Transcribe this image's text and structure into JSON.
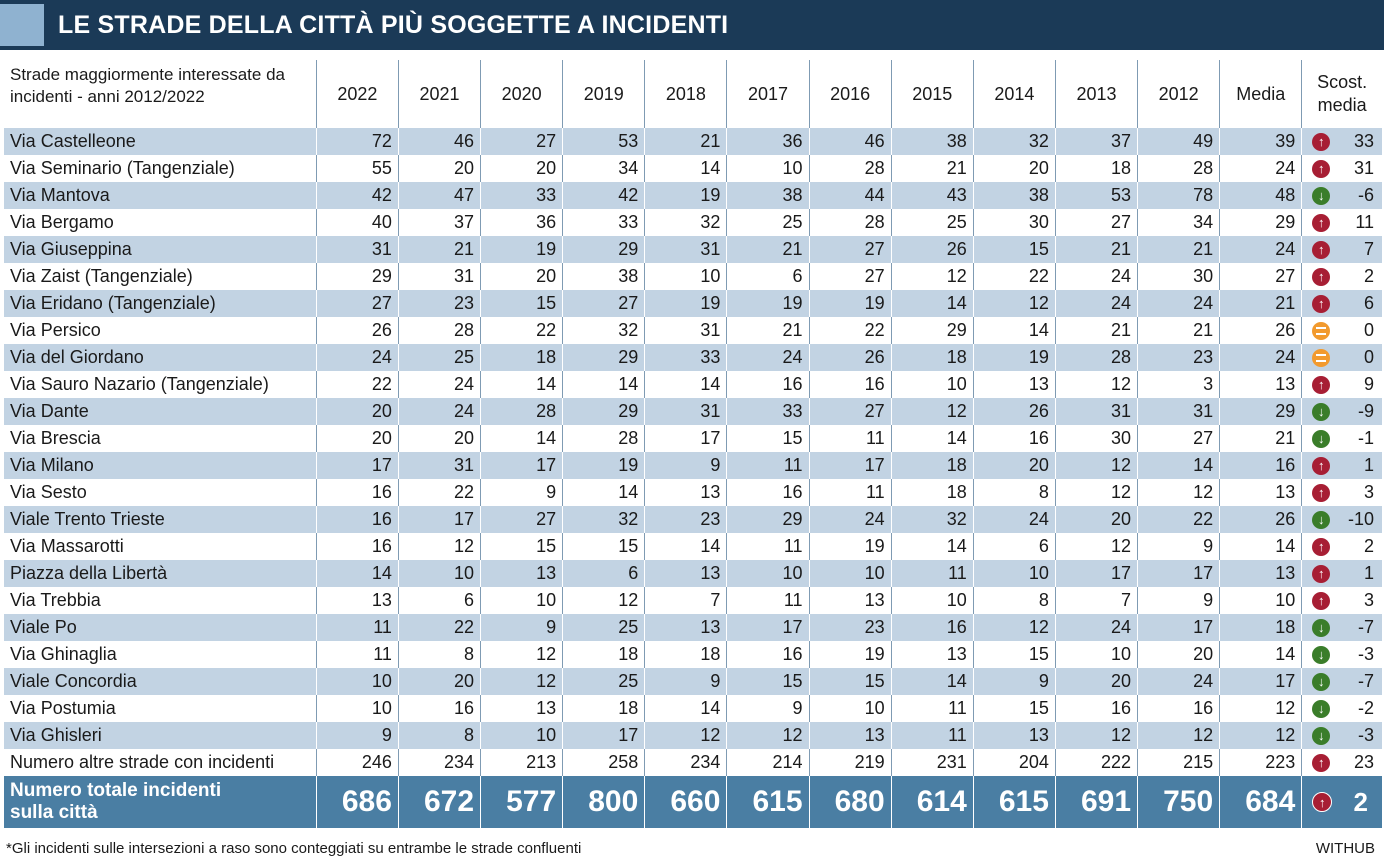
{
  "title": "LE STRADE DELLA CITTÀ PIÙ SOGGETTE A INCIDENTI",
  "header": {
    "street": "Strade maggiormente interessate da incidenti - anni 2012/2022",
    "years": [
      "2022",
      "2021",
      "2020",
      "2019",
      "2018",
      "2017",
      "2016",
      "2015",
      "2014",
      "2013",
      "2012"
    ],
    "media": "Media",
    "scost": "Scost. media"
  },
  "rows": [
    {
      "street": "Via Castelleone",
      "values": [
        "72",
        "46",
        "27",
        "53",
        "21",
        "36",
        "46",
        "38",
        "32",
        "37",
        "49"
      ],
      "media": "39",
      "trend": "up",
      "delta": "33"
    },
    {
      "street": "Via Seminario (Tangenziale)",
      "values": [
        "55",
        "20",
        "20",
        "34",
        "14",
        "10",
        "28",
        "21",
        "20",
        "18",
        "28"
      ],
      "media": "24",
      "trend": "up",
      "delta": "31"
    },
    {
      "street": "Via Mantova",
      "values": [
        "42",
        "47",
        "33",
        "42",
        "19",
        "38",
        "44",
        "43",
        "38",
        "53",
        "78"
      ],
      "media": "48",
      "trend": "down",
      "delta": "-6"
    },
    {
      "street": "Via Bergamo",
      "values": [
        "40",
        "37",
        "36",
        "33",
        "32",
        "25",
        "28",
        "25",
        "30",
        "27",
        "34"
      ],
      "media": "29",
      "trend": "up",
      "delta": "11"
    },
    {
      "street": "Via Giuseppina",
      "values": [
        "31",
        "21",
        "19",
        "29",
        "31",
        "21",
        "27",
        "26",
        "15",
        "21",
        "21"
      ],
      "media": "24",
      "trend": "up",
      "delta": "7"
    },
    {
      "street": "Via Zaist (Tangenziale)",
      "values": [
        "29",
        "31",
        "20",
        "38",
        "10",
        "6",
        "27",
        "12",
        "22",
        "24",
        "30"
      ],
      "media": "27",
      "trend": "up",
      "delta": "2"
    },
    {
      "street": "Via Eridano (Tangenziale)",
      "values": [
        "27",
        "23",
        "15",
        "27",
        "19",
        "19",
        "19",
        "14",
        "12",
        "24",
        "24"
      ],
      "media": "21",
      "trend": "up",
      "delta": "6"
    },
    {
      "street": "Via Persico",
      "values": [
        "26",
        "28",
        "22",
        "32",
        "31",
        "21",
        "22",
        "29",
        "14",
        "21",
        "21"
      ],
      "media": "26",
      "trend": "eq",
      "delta": "0"
    },
    {
      "street": "Via del Giordano",
      "values": [
        "24",
        "25",
        "18",
        "29",
        "33",
        "24",
        "26",
        "18",
        "19",
        "28",
        "23"
      ],
      "media": "24",
      "trend": "eq",
      "delta": "0"
    },
    {
      "street": "Via Sauro Nazario (Tangenziale)",
      "values": [
        "22",
        "24",
        "14",
        "14",
        "14",
        "16",
        "16",
        "10",
        "13",
        "12",
        "3"
      ],
      "media": "13",
      "trend": "up",
      "delta": "9"
    },
    {
      "street": "Via Dante",
      "values": [
        "20",
        "24",
        "28",
        "29",
        "31",
        "33",
        "27",
        "12",
        "26",
        "31",
        "31"
      ],
      "media": "29",
      "trend": "down",
      "delta": "-9"
    },
    {
      "street": "Via Brescia",
      "values": [
        "20",
        "20",
        "14",
        "28",
        "17",
        "15",
        "11",
        "14",
        "16",
        "30",
        "27"
      ],
      "media": "21",
      "trend": "down",
      "delta": "-1"
    },
    {
      "street": "Via Milano",
      "values": [
        "17",
        "31",
        "17",
        "19",
        "9",
        "11",
        "17",
        "18",
        "20",
        "12",
        "14"
      ],
      "media": "16",
      "trend": "up",
      "delta": "1"
    },
    {
      "street": "Via Sesto",
      "values": [
        "16",
        "22",
        "9",
        "14",
        "13",
        "16",
        "11",
        "18",
        "8",
        "12",
        "12"
      ],
      "media": "13",
      "trend": "up",
      "delta": "3"
    },
    {
      "street": "Viale Trento Trieste",
      "values": [
        "16",
        "17",
        "27",
        "32",
        "23",
        "29",
        "24",
        "32",
        "24",
        "20",
        "22"
      ],
      "media": "26",
      "trend": "down",
      "delta": "-10"
    },
    {
      "street": "Via Massarotti",
      "values": [
        "16",
        "12",
        "15",
        "15",
        "14",
        "11",
        "19",
        "14",
        "6",
        "12",
        "9"
      ],
      "media": "14",
      "trend": "up",
      "delta": "2"
    },
    {
      "street": "Piazza della Libertà",
      "values": [
        "14",
        "10",
        "13",
        "6",
        "13",
        "10",
        "10",
        "11",
        "10",
        "17",
        "17"
      ],
      "media": "13",
      "trend": "up",
      "delta": "1"
    },
    {
      "street": "Via Trebbia",
      "values": [
        "13",
        "6",
        "10",
        "12",
        "7",
        "11",
        "13",
        "10",
        "8",
        "7",
        "9"
      ],
      "media": "10",
      "trend": "up",
      "delta": "3"
    },
    {
      "street": "Viale Po",
      "values": [
        "11",
        "22",
        "9",
        "25",
        "13",
        "17",
        "23",
        "16",
        "12",
        "24",
        "17"
      ],
      "media": "18",
      "trend": "down",
      "delta": "-7"
    },
    {
      "street": "Via Ghinaglia",
      "values": [
        "11",
        "8",
        "12",
        "18",
        "18",
        "16",
        "19",
        "13",
        "15",
        "10",
        "20"
      ],
      "media": "14",
      "trend": "down",
      "delta": "-3"
    },
    {
      "street": "Viale Concordia",
      "values": [
        "10",
        "20",
        "12",
        "25",
        "9",
        "15",
        "15",
        "14",
        "9",
        "20",
        "24"
      ],
      "media": "17",
      "trend": "down",
      "delta": "-7"
    },
    {
      "street": "Via Postumia",
      "values": [
        "10",
        "16",
        "13",
        "18",
        "14",
        "9",
        "10",
        "11",
        "15",
        "16",
        "16"
      ],
      "media": "12",
      "trend": "down",
      "delta": "-2"
    },
    {
      "street": "Via Ghisleri",
      "values": [
        "9",
        "8",
        "10",
        "17",
        "12",
        "12",
        "13",
        "11",
        "13",
        "12",
        "12"
      ],
      "media": "12",
      "trend": "down",
      "delta": "-3"
    },
    {
      "street": "Numero altre strade con incidenti",
      "values": [
        "246",
        "234",
        "213",
        "258",
        "234",
        "214",
        "219",
        "231",
        "204",
        "222",
        "215"
      ],
      "media": "223",
      "trend": "up",
      "delta": "23"
    }
  ],
  "total": {
    "label_line1": "Numero totale incidenti",
    "label_line2": "sulla città",
    "values": [
      "686",
      "672",
      "577",
      "800",
      "660",
      "615",
      "680",
      "614",
      "615",
      "691",
      "750"
    ],
    "media": "684",
    "trend": "up",
    "delta": "2"
  },
  "footnote": "*Gli incidenti sulle intersezioni a raso sono conteggiati su entrambe le strade confluenti",
  "source": "WITHUB",
  "colors": {
    "title_bg": "#1b3a57",
    "title_accent": "#8fb2d0",
    "row_alt": "#c2d3e3",
    "total_bg": "#4a7ea3",
    "up": "#a71e34",
    "down": "#3a7d2a",
    "equal": "#f29a2e"
  }
}
